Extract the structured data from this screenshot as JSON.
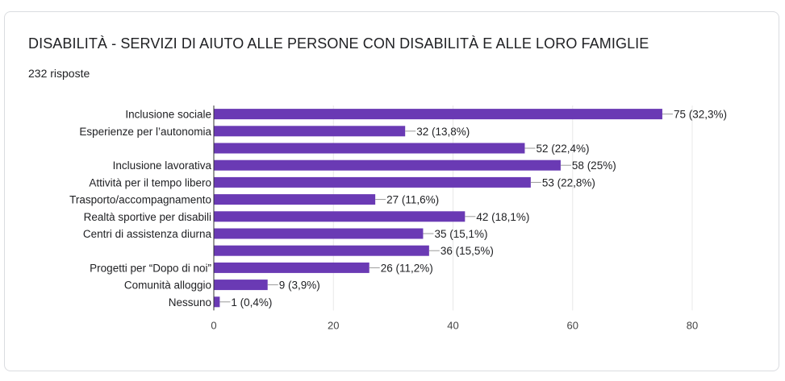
{
  "header": {
    "title": "DISABILITÀ - SERVIZI DI AIUTO ALLE PERSONE CON DISABILITÀ E ALLE LORO FAMIGLIE",
    "responses": "232 risposte"
  },
  "colors": {
    "bar": "#6a3ab4",
    "grid": "#e8e8e8",
    "axis": "#333333",
    "leader": "#999999"
  },
  "chart_data": {
    "type": "bar",
    "orientation": "horizontal",
    "categories": [
      "Inclusione sociale",
      "Esperienze per l’autonomia",
      "",
      "Inclusione lavorativa",
      "Attività per il tempo libero",
      "Trasporto/accompagnamento",
      "Realtà sportive per disabili",
      "Centri di assistenza diurna",
      "",
      "Progetti per “Dopo di noi”",
      "Comunità alloggio",
      "Nessuno"
    ],
    "values": [
      75,
      32,
      52,
      58,
      53,
      27,
      42,
      35,
      36,
      26,
      9,
      1
    ],
    "value_labels": [
      "75 (32,3%)",
      "32 (13,8%)",
      "52 (22,4%)",
      "58 (25%)",
      "53 (22,8%)",
      "27 (11,6%)",
      "42 (18,1%)",
      "35 (15,1%)",
      "36 (15,5%)",
      "26 (11,2%)",
      "9 (3,9%)",
      "1 (0,4%)"
    ],
    "xlim": [
      0,
      80
    ],
    "xticks": [
      0,
      20,
      40,
      60,
      80
    ],
    "grid": true,
    "legend": "none"
  }
}
